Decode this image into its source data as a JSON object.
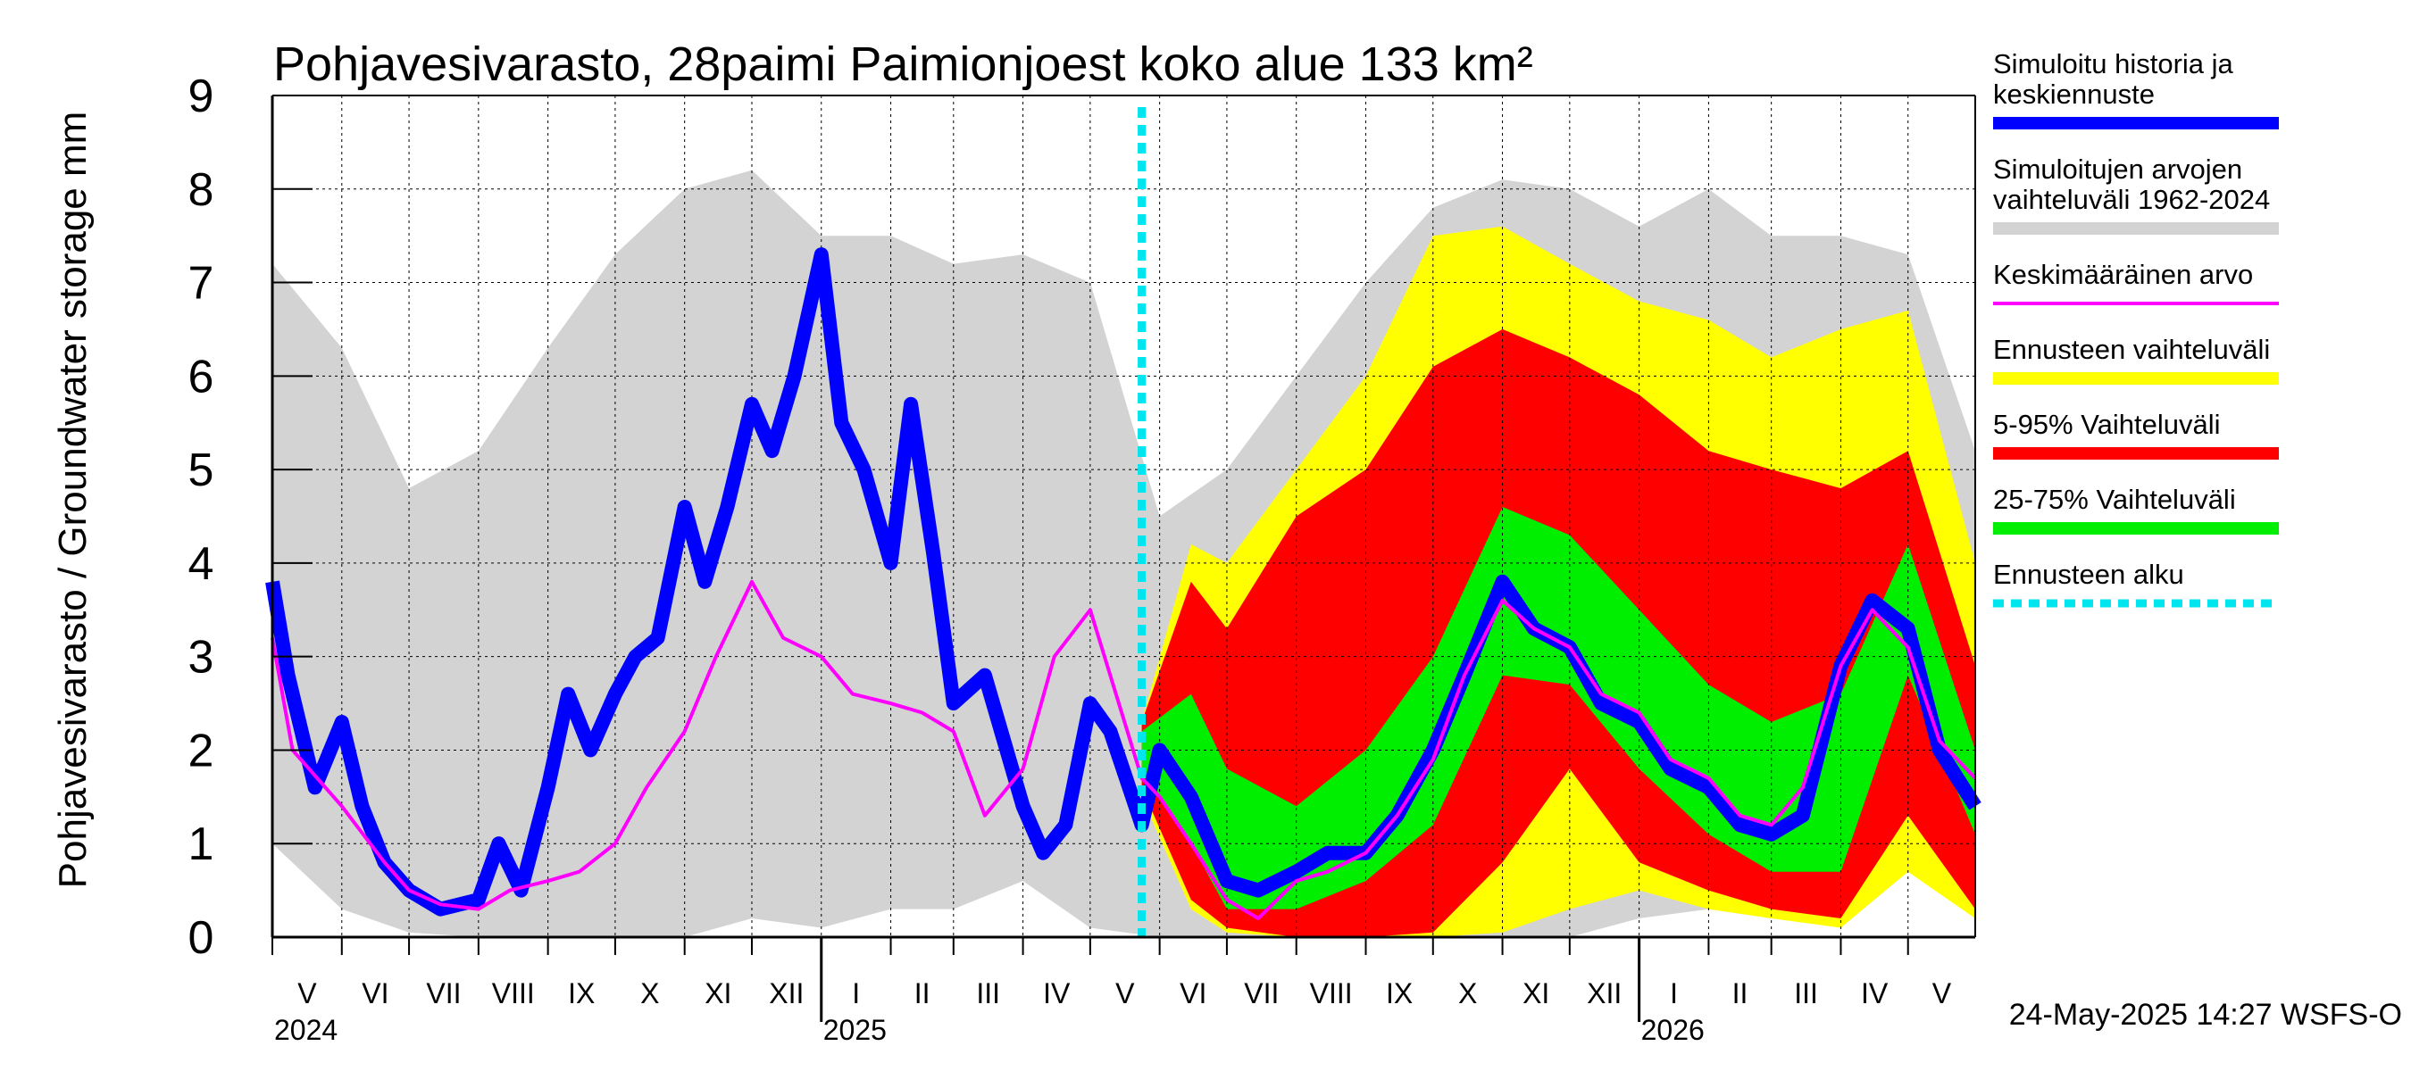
{
  "chart_data": {
    "type": "area",
    "title": "Pohjavesivarasto, 28paimi Paimionjoest koko alue 133 km²",
    "ylabel": "Pohjavesivarasto / Groundwater storage   mm",
    "ylim": [
      0,
      9
    ],
    "yticks": [
      "0",
      "1",
      "2",
      "3",
      "4",
      "5",
      "6",
      "7",
      "8",
      "9"
    ],
    "grid": true,
    "legend_position": "right",
    "x_range": [
      "2024-05-01",
      "2026-05-31"
    ],
    "forecast_start": "2025-05-24",
    "footer": "24-May-2025 14:27 WSFS-O",
    "months": [
      {
        "label": "V",
        "start": "2024-05-01"
      },
      {
        "label": "VI",
        "start": "2024-06-01"
      },
      {
        "label": "VII",
        "start": "2024-07-01"
      },
      {
        "label": "VIII",
        "start": "2024-08-01"
      },
      {
        "label": "IX",
        "start": "2024-09-01"
      },
      {
        "label": "X",
        "start": "2024-10-01"
      },
      {
        "label": "XI",
        "start": "2024-11-01"
      },
      {
        "label": "XII",
        "start": "2024-12-01"
      },
      {
        "label": "I",
        "start": "2025-01-01"
      },
      {
        "label": "II",
        "start": "2025-02-01"
      },
      {
        "label": "III",
        "start": "2025-03-01"
      },
      {
        "label": "IV",
        "start": "2025-04-01"
      },
      {
        "label": "V",
        "start": "2025-05-01"
      },
      {
        "label": "VI",
        "start": "2025-06-01"
      },
      {
        "label": "VII",
        "start": "2025-07-01"
      },
      {
        "label": "VIII",
        "start": "2025-08-01"
      },
      {
        "label": "IX",
        "start": "2025-09-01"
      },
      {
        "label": "X",
        "start": "2025-10-01"
      },
      {
        "label": "XI",
        "start": "2025-11-01"
      },
      {
        "label": "XII",
        "start": "2025-12-01"
      },
      {
        "label": "I",
        "start": "2026-01-01"
      },
      {
        "label": "II",
        "start": "2026-02-01"
      },
      {
        "label": "III",
        "start": "2026-03-01"
      },
      {
        "label": "IV",
        "start": "2026-04-01"
      },
      {
        "label": "V",
        "start": "2026-05-01"
      }
    ],
    "years": [
      {
        "label": "2024",
        "date": "2024-05-01"
      },
      {
        "label": "2025",
        "date": "2025-01-01"
      },
      {
        "label": "2026",
        "date": "2026-01-01"
      }
    ],
    "legend": [
      {
        "label": "Simuloitu historia ja keskiennuste",
        "color": "#0000ff",
        "style": "thick"
      },
      {
        "label": "Simuloitujen arvojen vaihteluväli 1962-2024",
        "color": "#d3d3d3",
        "style": "thick"
      },
      {
        "label": "Keskimääräinen arvo",
        "color": "#ff00ff",
        "style": "thin"
      },
      {
        "label": "Ennusteen vaihteluväli",
        "color": "#ffff00",
        "style": "thick"
      },
      {
        "label": "5-95% Vaihteluväli",
        "color": "#ff0000",
        "style": "thick"
      },
      {
        "label": "25-75% Vaihteluväli",
        "color": "#00ee00",
        "style": "thick"
      },
      {
        "label": "Ennusteen alku",
        "color": "#00e5ee",
        "style": "dotted"
      }
    ],
    "series": [
      {
        "name": "Simuloitujen arvojen vaihteluväli 1962-2024",
        "kind": "band",
        "color": "#d3d3d3",
        "x": [
          "2024-05-01",
          "2024-06-01",
          "2024-07-01",
          "2024-08-01",
          "2024-09-01",
          "2024-10-01",
          "2024-11-01",
          "2024-12-01",
          "2025-01-01",
          "2025-02-01",
          "2025-03-01",
          "2025-04-01",
          "2025-05-01",
          "2025-06-01",
          "2025-07-01",
          "2025-08-01",
          "2025-09-01",
          "2025-10-01",
          "2025-11-01",
          "2025-12-01",
          "2026-01-01",
          "2026-02-01",
          "2026-03-01",
          "2026-04-01",
          "2026-05-01",
          "2026-05-31"
        ],
        "low": [
          1.0,
          0.3,
          0.05,
          0.0,
          0.0,
          0.0,
          0.0,
          0.2,
          0.1,
          0.3,
          0.3,
          0.6,
          0.1,
          0.0,
          0.0,
          0.0,
          0.0,
          0.0,
          0.0,
          0.0,
          0.2,
          0.3,
          0.2,
          0.3,
          0.8,
          0.3
        ],
        "high": [
          7.2,
          6.3,
          4.8,
          5.2,
          6.3,
          7.3,
          8.0,
          8.2,
          7.5,
          7.5,
          7.2,
          7.3,
          7.0,
          4.5,
          5.0,
          6.0,
          7.0,
          7.8,
          8.1,
          8.0,
          7.6,
          8.0,
          7.5,
          7.5,
          7.3,
          5.2
        ]
      },
      {
        "name": "Ennusteen vaihteluväli",
        "kind": "band",
        "color": "#ffff00",
        "x": [
          "2025-05-24",
          "2025-06-15",
          "2025-07-01",
          "2025-08-01",
          "2025-09-01",
          "2025-10-01",
          "2025-11-01",
          "2025-12-01",
          "2026-01-01",
          "2026-02-01",
          "2026-03-01",
          "2026-04-01",
          "2026-05-01",
          "2026-05-31"
        ],
        "low": [
          1.5,
          0.3,
          0.05,
          0.0,
          0.0,
          0.0,
          0.05,
          0.3,
          0.5,
          0.3,
          0.2,
          0.1,
          0.7,
          0.2
        ],
        "high": [
          2.3,
          4.2,
          4.0,
          5.0,
          6.0,
          7.5,
          7.6,
          7.2,
          6.8,
          6.6,
          6.2,
          6.5,
          6.7,
          4.0
        ]
      },
      {
        "name": "5-95% Vaihteluväli",
        "kind": "band",
        "color": "#ff0000",
        "x": [
          "2025-05-24",
          "2025-06-15",
          "2025-07-01",
          "2025-08-01",
          "2025-09-01",
          "2025-10-01",
          "2025-11-01",
          "2025-12-01",
          "2026-01-01",
          "2026-02-01",
          "2026-03-01",
          "2026-04-01",
          "2026-05-01",
          "2026-05-31"
        ],
        "low": [
          1.6,
          0.4,
          0.1,
          0.0,
          0.0,
          0.05,
          0.8,
          1.8,
          0.8,
          0.5,
          0.3,
          0.2,
          1.3,
          0.3
        ],
        "high": [
          2.3,
          3.8,
          3.3,
          4.5,
          5.0,
          6.1,
          6.5,
          6.2,
          5.8,
          5.2,
          5.0,
          4.8,
          5.2,
          2.9
        ]
      },
      {
        "name": "25-75% Vaihteluväli",
        "kind": "band",
        "color": "#00ee00",
        "x": [
          "2025-05-24",
          "2025-06-15",
          "2025-07-01",
          "2025-08-01",
          "2025-09-01",
          "2025-10-01",
          "2025-11-01",
          "2025-12-01",
          "2026-01-01",
          "2026-02-01",
          "2026-03-01",
          "2026-04-01",
          "2026-05-01",
          "2026-05-31"
        ],
        "low": [
          1.8,
          1.0,
          0.3,
          0.3,
          0.6,
          1.2,
          2.8,
          2.7,
          1.8,
          1.1,
          0.7,
          0.7,
          2.8,
          1.1
        ],
        "high": [
          2.2,
          2.6,
          1.8,
          1.4,
          2.0,
          3.0,
          4.6,
          4.3,
          3.5,
          2.7,
          2.3,
          2.6,
          4.2,
          2.0
        ]
      },
      {
        "name": "Simuloitu historia ja keskiennuste",
        "kind": "line",
        "color": "#0000ff",
        "x": [
          "2024-05-01",
          "2024-05-08",
          "2024-05-20",
          "2024-06-01",
          "2024-06-10",
          "2024-06-20",
          "2024-07-01",
          "2024-07-15",
          "2024-08-01",
          "2024-08-10",
          "2024-08-20",
          "2024-09-01",
          "2024-09-10",
          "2024-09-20",
          "2024-10-01",
          "2024-10-10",
          "2024-10-20",
          "2024-11-01",
          "2024-11-10",
          "2024-11-20",
          "2024-12-01",
          "2024-12-10",
          "2024-12-20",
          "2025-01-01",
          "2025-01-10",
          "2025-01-20",
          "2025-02-01",
          "2025-02-10",
          "2025-02-20",
          "2025-03-01",
          "2025-03-15",
          "2025-04-01",
          "2025-04-10",
          "2025-04-20",
          "2025-05-01",
          "2025-05-10",
          "2025-05-24",
          "2025-06-01",
          "2025-06-15",
          "2025-07-01",
          "2025-07-15",
          "2025-08-01",
          "2025-08-15",
          "2025-09-01",
          "2025-09-15",
          "2025-10-01",
          "2025-10-15",
          "2025-11-01",
          "2025-11-15",
          "2025-12-01",
          "2025-12-15",
          "2026-01-01",
          "2026-01-15",
          "2026-02-01",
          "2026-02-15",
          "2026-03-01",
          "2026-03-15",
          "2026-04-01",
          "2026-04-15",
          "2026-05-01",
          "2026-05-15",
          "2026-05-31"
        ],
        "y": [
          3.8,
          2.8,
          1.6,
          2.3,
          1.4,
          0.8,
          0.5,
          0.3,
          0.4,
          1.0,
          0.5,
          1.6,
          2.6,
          2.0,
          2.6,
          3.0,
          3.2,
          4.6,
          3.8,
          4.6,
          5.7,
          5.2,
          6.0,
          7.3,
          5.5,
          5.0,
          4.0,
          5.7,
          4.1,
          2.5,
          2.8,
          1.4,
          0.9,
          1.2,
          2.5,
          2.2,
          1.2,
          2.0,
          1.5,
          0.6,
          0.5,
          0.7,
          0.9,
          0.9,
          1.3,
          2.0,
          2.8,
          3.8,
          3.3,
          3.1,
          2.5,
          2.3,
          1.8,
          1.6,
          1.2,
          1.1,
          1.3,
          2.9,
          3.6,
          3.3,
          2.0,
          1.4
        ]
      },
      {
        "name": "Keskimääräinen arvo",
        "kind": "line",
        "color": "#ff00ff",
        "x": [
          "2024-05-01",
          "2024-05-10",
          "2024-06-01",
          "2024-06-20",
          "2024-07-01",
          "2024-07-15",
          "2024-08-01",
          "2024-08-15",
          "2024-09-01",
          "2024-09-15",
          "2024-10-01",
          "2024-10-15",
          "2024-11-01",
          "2024-11-15",
          "2024-12-01",
          "2024-12-15",
          "2025-01-01",
          "2025-01-15",
          "2025-02-01",
          "2025-02-15",
          "2025-03-01",
          "2025-03-15",
          "2025-04-01",
          "2025-04-15",
          "2025-05-01",
          "2025-05-24",
          "2025-06-01",
          "2025-06-15",
          "2025-07-01",
          "2025-07-15",
          "2025-08-01",
          "2025-08-15",
          "2025-09-01",
          "2025-09-15",
          "2025-10-01",
          "2025-10-15",
          "2025-11-01",
          "2025-11-15",
          "2025-12-01",
          "2025-12-15",
          "2026-01-01",
          "2026-01-15",
          "2026-02-01",
          "2026-02-15",
          "2026-03-01",
          "2026-03-15",
          "2026-04-01",
          "2026-04-15",
          "2026-05-01",
          "2026-05-15",
          "2026-05-31"
        ],
        "y": [
          3.2,
          2.0,
          1.4,
          0.8,
          0.5,
          0.35,
          0.3,
          0.5,
          0.6,
          0.7,
          1.0,
          1.6,
          2.2,
          3.0,
          3.8,
          3.2,
          3.0,
          2.6,
          2.5,
          2.4,
          2.2,
          1.3,
          1.8,
          3.0,
          3.5,
          1.7,
          1.5,
          1.0,
          0.4,
          0.2,
          0.6,
          0.7,
          0.9,
          1.3,
          1.9,
          2.8,
          3.6,
          3.3,
          3.1,
          2.6,
          2.4,
          1.9,
          1.7,
          1.3,
          1.2,
          1.6,
          2.9,
          3.5,
          3.1,
          2.1,
          1.7
        ]
      }
    ]
  }
}
